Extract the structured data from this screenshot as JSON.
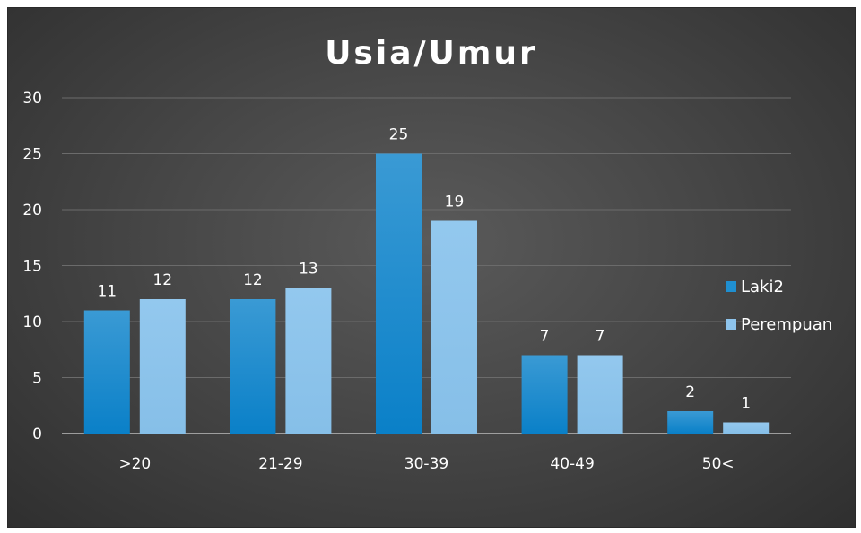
{
  "chart_data": {
    "type": "bar",
    "title": "Usia/Umur",
    "xlabel": "",
    "ylabel": "",
    "categories": [
      ">20",
      "21-29",
      "30-39",
      "40-49",
      "50<"
    ],
    "series": [
      {
        "name": "Laki2",
        "values": [
          11,
          12,
          25,
          7,
          2
        ],
        "color": "#1f8fd0"
      },
      {
        "name": "Perempuan",
        "values": [
          12,
          13,
          19,
          7,
          1
        ],
        "color": "#8ec4ec"
      }
    ],
    "ylim": [
      0,
      30
    ],
    "yticks": [
      0,
      5,
      10,
      15,
      20,
      25,
      30
    ],
    "grid": true,
    "legend_position": "right",
    "background": "#4a4a4a"
  }
}
